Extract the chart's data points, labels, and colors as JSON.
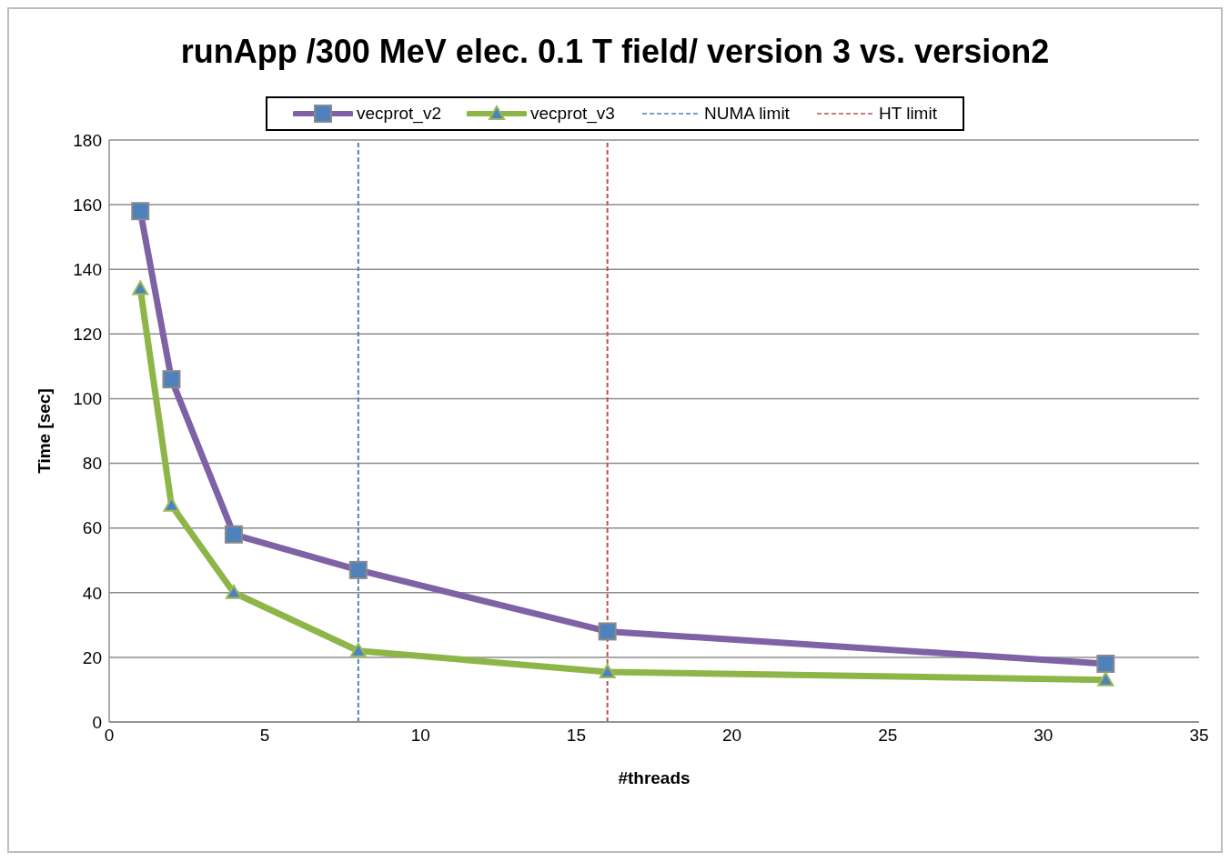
{
  "chart_data": {
    "type": "line",
    "title": "runApp /300 MeV elec. 0.1 T field/ version 3 vs. version2",
    "xlabel": "#threads",
    "ylabel": "Time [sec]",
    "x": [
      1,
      2,
      4,
      8,
      16,
      32
    ],
    "series": [
      {
        "name": "vecprot_v2",
        "color": "#7f62a5",
        "marker": "square",
        "values": [
          158,
          106,
          58,
          47,
          28,
          18
        ]
      },
      {
        "name": "vecprot_v3",
        "color": "#8db548",
        "marker": "triangle",
        "values": [
          134,
          67,
          40,
          22,
          15.5,
          13
        ]
      }
    ],
    "xlim": [
      0,
      35
    ],
    "xticks": [
      0,
      5,
      10,
      15,
      20,
      25,
      30,
      35
    ],
    "ylim": [
      0,
      180
    ],
    "yticks": [
      0,
      20,
      40,
      60,
      80,
      100,
      120,
      140,
      160,
      180
    ],
    "ref_lines": [
      {
        "axis": "x",
        "value": 8,
        "label": "NUMA limit",
        "color": "#4f81bd",
        "line_style": "dashed"
      },
      {
        "axis": "x",
        "value": 16,
        "label": "HT limit",
        "color": "#c0504d",
        "line_style": "dashed"
      }
    ],
    "grid": "y",
    "legend": "top",
    "line_style": "solid"
  }
}
